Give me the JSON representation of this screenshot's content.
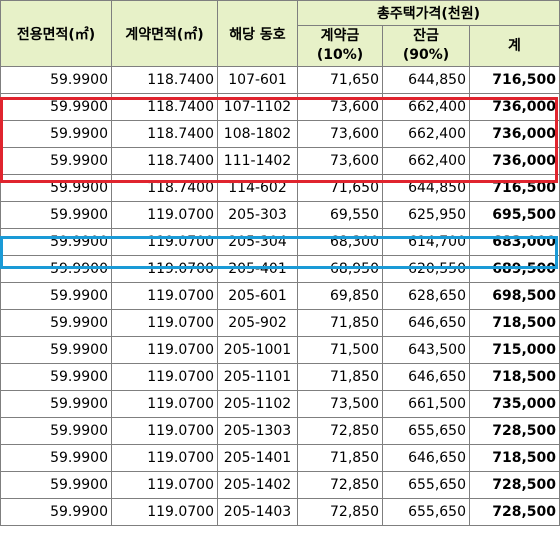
{
  "headers": {
    "exclusive_area": "전용면적(㎡)",
    "contract_area": "계약면적(㎡)",
    "unit": "해당 동호",
    "total_price": "총주택가격(천원)",
    "deposit": "계약금\n(10%)",
    "balance": "잔금\n(90%)",
    "sum": "계"
  },
  "rows": [
    [
      "59.9900",
      "118.7400",
      "107-601",
      "71,650",
      "644,850",
      "716,500"
    ],
    [
      "59.9900",
      "118.7400",
      "107-1102",
      "73,600",
      "662,400",
      "736,000"
    ],
    [
      "59.9900",
      "118.7400",
      "108-1802",
      "73,600",
      "662,400",
      "736,000"
    ],
    [
      "59.9900",
      "118.7400",
      "111-1402",
      "73,600",
      "662,400",
      "736,000"
    ],
    [
      "59.9900",
      "118.7400",
      "114-602",
      "71,650",
      "644,850",
      "716,500"
    ],
    [
      "59.9900",
      "119.0700",
      "205-303",
      "69,550",
      "625,950",
      "695,500"
    ],
    [
      "59.9900",
      "119.0700",
      "205-304",
      "68,300",
      "614,700",
      "683,000"
    ],
    [
      "59.9900",
      "119.0700",
      "205-401",
      "68,950",
      "620,550",
      "689,500"
    ],
    [
      "59.9900",
      "119.0700",
      "205-601",
      "69,850",
      "628,650",
      "698,500"
    ],
    [
      "59.9900",
      "119.0700",
      "205-902",
      "71,850",
      "646,650",
      "718,500"
    ],
    [
      "59.9900",
      "119.0700",
      "205-1001",
      "71,500",
      "643,500",
      "715,000"
    ],
    [
      "59.9900",
      "119.0700",
      "205-1101",
      "71,850",
      "646,650",
      "718,500"
    ],
    [
      "59.9900",
      "119.0700",
      "205-1102",
      "73,500",
      "661,500",
      "735,000"
    ],
    [
      "59.9900",
      "119.0700",
      "205-1303",
      "72,850",
      "655,650",
      "728,500"
    ],
    [
      "59.9900",
      "119.0700",
      "205-1401",
      "71,850",
      "646,650",
      "718,500"
    ],
    [
      "59.9900",
      "119.0700",
      "205-1402",
      "72,850",
      "655,650",
      "728,500"
    ],
    [
      "59.9900",
      "119.0700",
      "205-1403",
      "72,850",
      "655,650",
      "728,500"
    ]
  ],
  "highlight_colors": {
    "red": "#e0242e",
    "blue": "#1a9ad6",
    "header_bg": "#e7f1c8"
  }
}
